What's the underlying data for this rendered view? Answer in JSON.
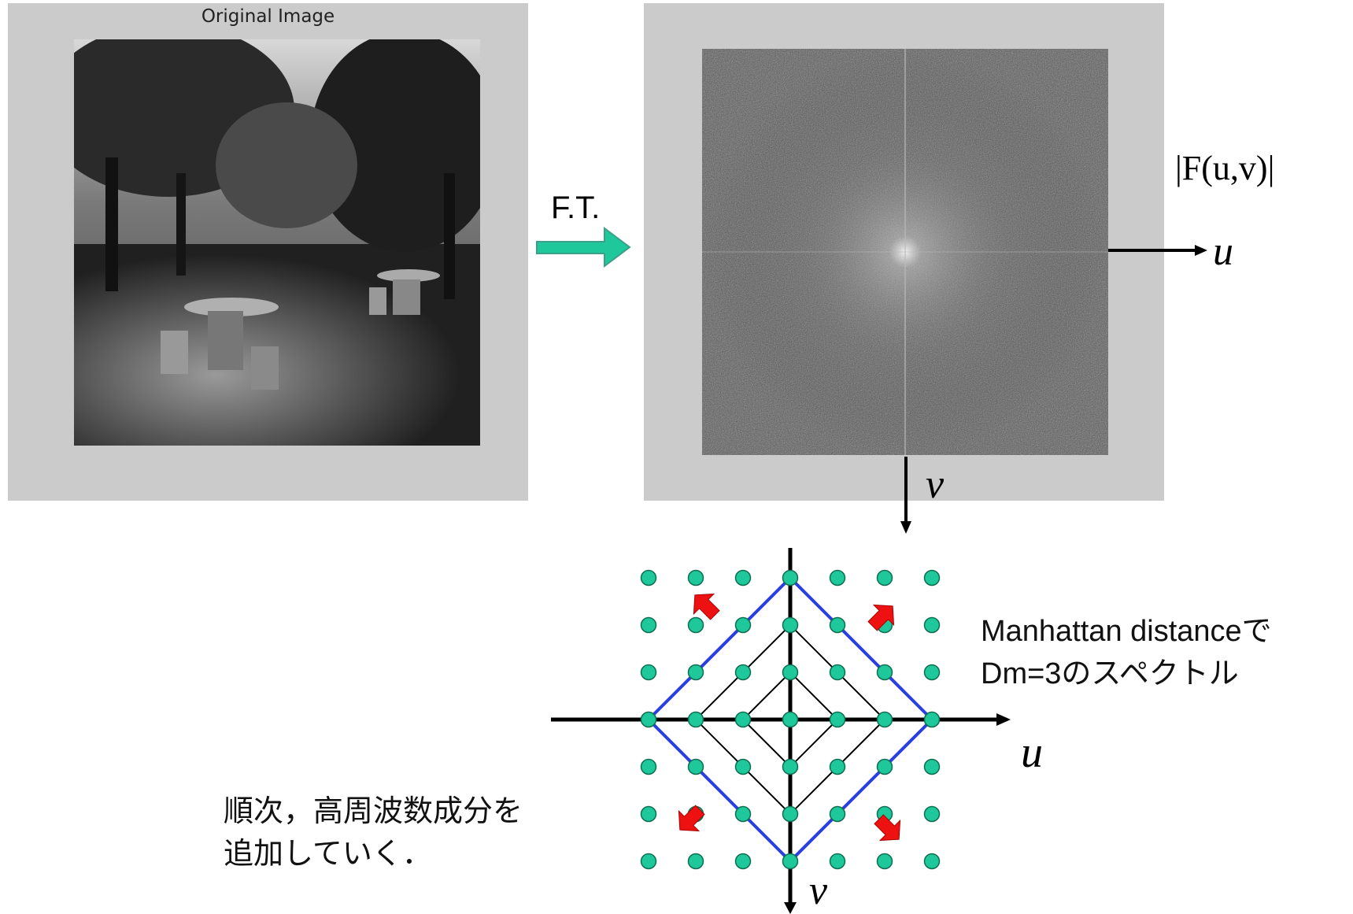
{
  "original_image": {
    "title": "Original Image",
    "photo": "grayscale park scene with trees and stone picnic tables"
  },
  "transform_label": "F.T.",
  "spectrum": {
    "magnitude_label": "|F(u,v)|",
    "axis_u": "u",
    "axis_v": "v"
  },
  "grid_diagram": {
    "axis_u": "u",
    "axis_v": "v",
    "dot_color": "#1ec89a",
    "outer_diamond_color": "#2a3fe0",
    "arrow_color": "#ee1111"
  },
  "annotation_manhattan": [
    "Manhattan distanceで",
    "Dm=3のスペクトル"
  ],
  "annotation_sequence": [
    "順次，高周波数成分を",
    "追加していく．"
  ]
}
